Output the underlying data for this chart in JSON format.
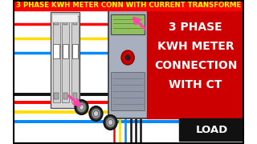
{
  "bg_color": "#ffffff",
  "title_text": "3 PHASE KWH METER CONN WITH CURRENT TRANSFORME",
  "title_bg": "#ff0000",
  "title_fg": "#ffff00",
  "title_fontsize": 6.2,
  "red_box_text": [
    "3 PHASE",
    "KWH METER",
    "CONNECTION",
    "WITH CT"
  ],
  "red_box_color": "#cc0000",
  "red_box_text_color": "#ffffff",
  "load_box_color": "#111111",
  "load_text_color": "#ffffff",
  "wire_red": "#ff0000",
  "wire_yellow": "#ffdd00",
  "wire_blue": "#0088ff",
  "wire_black": "#111111",
  "pink": "#ff44aa",
  "cb_color": "#d8d8d8",
  "meter_color": "#b8bcc8",
  "meter_screen": "#90c060",
  "ct_outer": "#444444",
  "ct_inner": "#888888"
}
